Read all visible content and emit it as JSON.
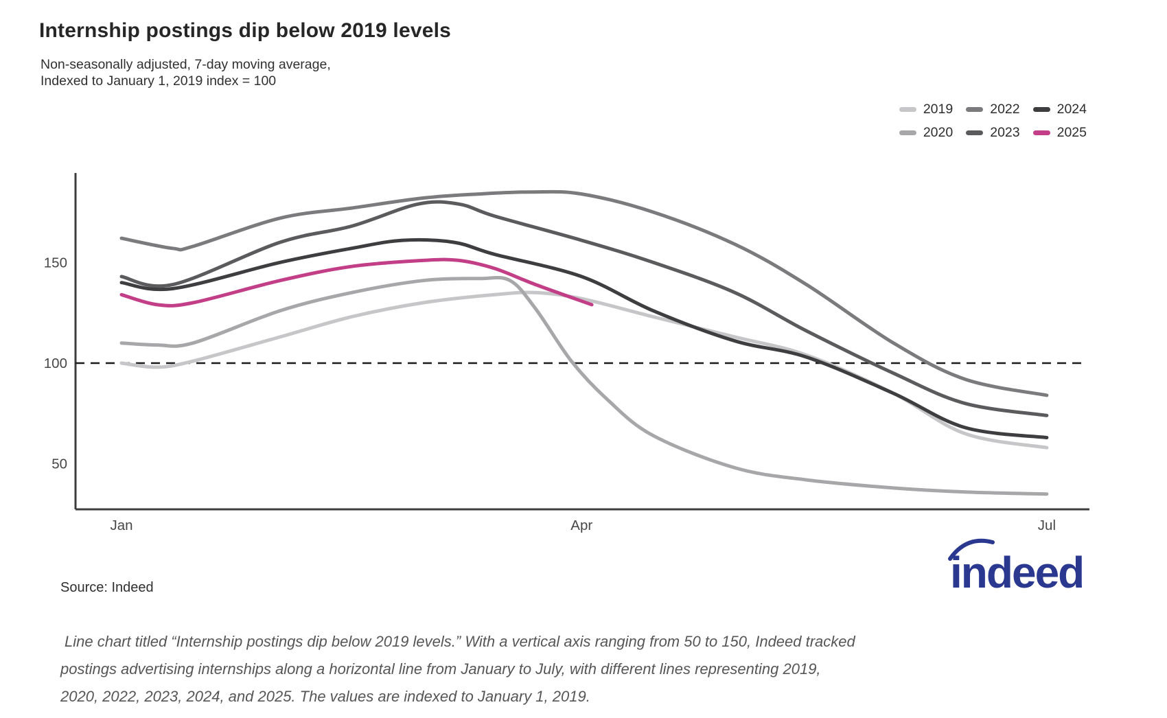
{
  "header": {
    "title": "Internship postings dip below 2019 levels",
    "subtitle_line1": "Non-seasonally adjusted, 7-day moving average,",
    "subtitle_line2": "Indexed to January 1, 2019 index = 100"
  },
  "legend": {
    "rows": [
      [
        {
          "label": "2019",
          "color": "#c6c6c8"
        },
        {
          "label": "2022",
          "color": "#7b7b7e"
        },
        {
          "label": "2024",
          "color": "#3e3e41"
        }
      ],
      [
        {
          "label": "2020",
          "color": "#a7a7aa"
        },
        {
          "label": "2023",
          "color": "#5b5b5e"
        },
        {
          "label": "2025",
          "color": "#c23e87"
        }
      ]
    ]
  },
  "chart_data": {
    "type": "line",
    "title": "Internship postings dip below 2019 levels",
    "xlabel": "",
    "ylabel": "",
    "x_axis": {
      "unit": "day-of-year (Jan 1 = 0)",
      "range_days": [
        0,
        181
      ],
      "tick_labels": [
        "Jan",
        "Apr",
        "Jul"
      ],
      "tick_days": [
        0,
        90,
        181
      ]
    },
    "y_axis": {
      "ticks": [
        50,
        100,
        150
      ],
      "range": [
        27,
        195
      ],
      "grid": false
    },
    "reference_line": {
      "value": 100,
      "style": "dashed",
      "color": "#1a1a1a"
    },
    "legend_position": "top-right",
    "series": [
      {
        "name": "2019",
        "color": "#c6c6c8",
        "days": [
          0,
          7,
          14,
          31,
          45,
          59,
          73,
          81,
          90,
          104,
          120,
          134,
          151,
          165,
          181
        ],
        "values": [
          100,
          98,
          101,
          113,
          123,
          130,
          134,
          135,
          132,
          123,
          113,
          104,
          85,
          65,
          58
        ]
      },
      {
        "name": "2020",
        "color": "#a7a7aa",
        "days": [
          0,
          7,
          14,
          31,
          45,
          59,
          70,
          76,
          81,
          88,
          95,
          104,
          120,
          134,
          151,
          165,
          181
        ],
        "values": [
          110,
          109,
          110,
          126,
          135,
          141,
          142,
          141,
          127,
          101,
          82,
          64,
          48,
          42,
          38,
          36,
          35
        ]
      },
      {
        "name": "2022",
        "color": "#7b7b7e",
        "days": [
          0,
          10,
          14,
          31,
          45,
          59,
          70,
          80,
          90,
          104,
          120,
          134,
          151,
          165,
          181
        ],
        "values": [
          162,
          157,
          158,
          172,
          177,
          182,
          184,
          185,
          184,
          175,
          159,
          139,
          110,
          92,
          84
        ]
      },
      {
        "name": "2023",
        "color": "#5b5b5e",
        "days": [
          0,
          10,
          31,
          45,
          58,
          66,
          73,
          90,
          104,
          120,
          134,
          151,
          165,
          181
        ],
        "values": [
          143,
          139,
          160,
          168,
          179,
          179,
          173,
          161,
          150,
          135,
          116,
          95,
          80,
          74
        ]
      },
      {
        "name": "2024",
        "color": "#3e3e41",
        "days": [
          0,
          10,
          31,
          45,
          55,
          65,
          73,
          90,
          104,
          120,
          134,
          151,
          165,
          181
        ],
        "values": [
          140,
          137,
          150,
          157,
          161,
          160,
          154,
          143,
          126,
          111,
          103,
          85,
          68,
          63
        ]
      },
      {
        "name": "2025",
        "color": "#c23e87",
        "days": [
          0,
          7,
          14,
          31,
          45,
          59,
          66,
          73,
          81,
          92
        ],
        "values": [
          134,
          129,
          130,
          141,
          148,
          151,
          151,
          147,
          139,
          129
        ]
      }
    ]
  },
  "footer": {
    "source": "Source: Indeed",
    "logo_text": "indeed",
    "logo_color": "#2b3890"
  },
  "caption": {
    "lines": [
      "Line chart titled “Internship postings dip below 2019 levels.” With a vertical axis ranging from 50 to 150, Indeed tracked",
      "postings advertising internships along a horizontal line from January to July, with different lines representing 2019,",
      "2020, 2022, 2023, 2024, and 2025. The values are indexed to January 1, 2019."
    ]
  }
}
